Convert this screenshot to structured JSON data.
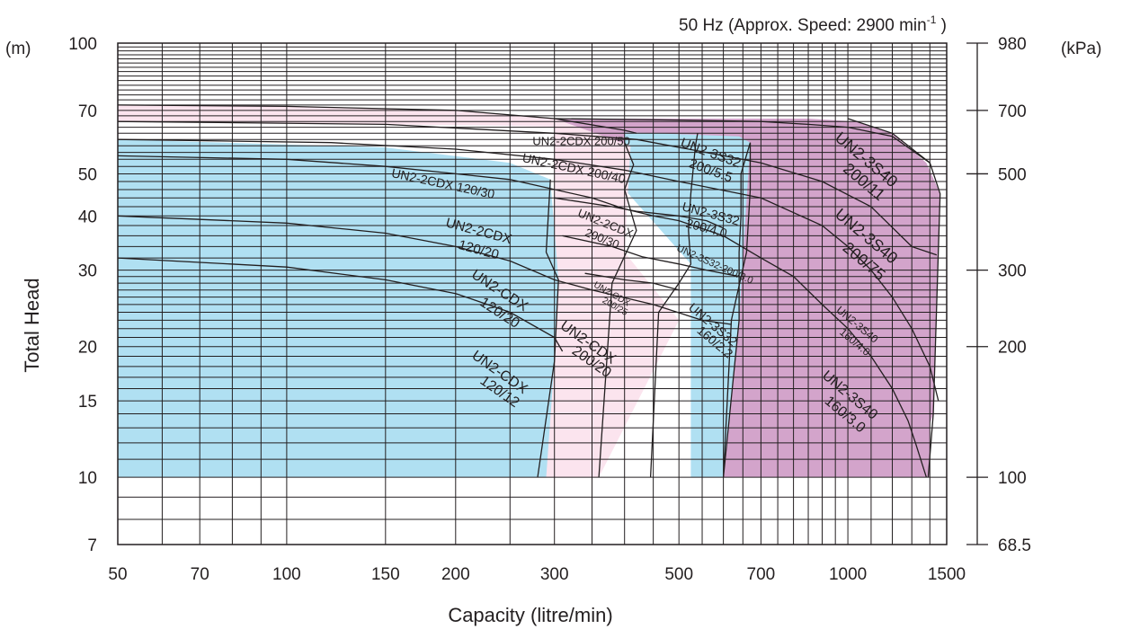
{
  "chart_data": {
    "type": "area",
    "title_main": "50 Hz (Approx. Speed: 2900 min",
    "title_sup": "-1",
    "title_end": " )",
    "xlabel": "Capacity (litre/min)",
    "ylabel": "Total Head",
    "y_unit_left": "(m)",
    "y_unit_right": "(kPa)",
    "x_scale": "log",
    "y_scale": "log",
    "xlim": [
      50,
      1500
    ],
    "ylim": [
      7,
      100
    ],
    "x_ticks": [
      {
        "v": 50,
        "label": "50"
      },
      {
        "v": 70,
        "label": "70"
      },
      {
        "v": 100,
        "label": "100"
      },
      {
        "v": 150,
        "label": "150"
      },
      {
        "v": 200,
        "label": "200"
      },
      {
        "v": 300,
        "label": "300"
      },
      {
        "v": 500,
        "label": "500"
      },
      {
        "v": 700,
        "label": "700"
      },
      {
        "v": 1000,
        "label": "1000"
      },
      {
        "v": 1500,
        "label": "1500"
      }
    ],
    "y_ticks_left": [
      {
        "v": 7,
        "label": "7"
      },
      {
        "v": 10,
        "label": "10"
      },
      {
        "v": 15,
        "label": "15"
      },
      {
        "v": 20,
        "label": "20"
      },
      {
        "v": 30,
        "label": "30"
      },
      {
        "v": 40,
        "label": "40"
      },
      {
        "v": 50,
        "label": "50"
      },
      {
        "v": 70,
        "label": "70"
      },
      {
        "v": 100,
        "label": "100"
      }
    ],
    "y_ticks_right": [
      {
        "v": 7,
        "label": "68.5"
      },
      {
        "v": 10,
        "label": "100"
      },
      {
        "v": 20,
        "label": "200"
      },
      {
        "v": 30,
        "label": "300"
      },
      {
        "v": 50,
        "label": "500"
      },
      {
        "v": 70,
        "label": "700"
      },
      {
        "v": 100,
        "label": "980"
      }
    ],
    "colors": {
      "purple": "#d3a4cb",
      "blue": "#b0e0f2",
      "pink": "#fbe4ee",
      "line": "#231f20"
    },
    "regions": [
      {
        "name": "UN2-3S40 (purple)",
        "color": "purple",
        "polygon": [
          [
            600,
            10
          ],
          [
            1400,
            10
          ],
          [
            1400,
            13.3
          ],
          [
            1420,
            14
          ],
          [
            1460,
            45
          ],
          [
            1380,
            53
          ],
          [
            1200,
            62
          ],
          [
            1040,
            66
          ],
          [
            850,
            67
          ],
          [
            300,
            67
          ],
          [
            300,
            59
          ],
          [
            600,
            40
          ]
        ]
      },
      {
        "name": "UN2-3S32 (blue)",
        "color": "blue",
        "polygon": [
          [
            525,
            10
          ],
          [
            600,
            10
          ],
          [
            640,
            23
          ],
          [
            670,
            59
          ],
          [
            640,
            61
          ],
          [
            450,
            62
          ],
          [
            400,
            62.3
          ],
          [
            400,
            46
          ],
          [
            525,
            31
          ]
        ]
      },
      {
        "name": "UN2-2CDX (pink)",
        "color": "pink",
        "polygon": [
          [
            280,
            10
          ],
          [
            360,
            10
          ],
          [
            500,
            23
          ],
          [
            400,
            33
          ],
          [
            410,
            58
          ],
          [
            300,
            67
          ],
          [
            200,
            70
          ],
          [
            100,
            71.5
          ],
          [
            50,
            72
          ],
          [
            50,
            66
          ],
          [
            150,
            65
          ],
          [
            250,
            64.5
          ],
          [
            300,
            64.2
          ],
          [
            300,
            44
          ]
        ]
      },
      {
        "name": "UN2-CDX / 2CDX 120 (blue)",
        "color": "blue",
        "polygon": [
          [
            50,
            10
          ],
          [
            290,
            10
          ],
          [
            300,
            18.5
          ],
          [
            305,
            28.5
          ],
          [
            295,
            48.5
          ],
          [
            250,
            53
          ],
          [
            150,
            57.5
          ],
          [
            50,
            60
          ]
        ]
      }
    ],
    "boundaries": [
      [
        [
          280,
          10
        ],
        [
          300,
          18.5
        ],
        [
          305,
          28.5
        ],
        [
          290,
          33
        ],
        [
          295,
          48.5
        ]
      ],
      [
        [
          360,
          10
        ],
        [
          380,
          28
        ],
        [
          420,
          37
        ],
        [
          400,
          46
        ],
        [
          415,
          52.5
        ],
        [
          400,
          59
        ]
      ],
      [
        [
          445,
          10
        ],
        [
          460,
          24
        ],
        [
          500,
          28
        ],
        [
          525,
          31
        ],
        [
          520,
          37
        ],
        [
          525,
          45
        ],
        [
          535,
          58
        ],
        [
          540,
          62
        ]
      ],
      [
        [
          600,
          10
        ],
        [
          640,
          23
        ],
        [
          640,
          33
        ],
        [
          645,
          40
        ],
        [
          645,
          50
        ],
        [
          670,
          59
        ]
      ],
      [
        [
          600,
          10
        ],
        [
          620,
          23
        ],
        [
          660,
          33
        ],
        [
          670,
          46
        ],
        [
          670,
          59
        ]
      ],
      [
        [
          1390,
          10
        ],
        [
          1420,
          14
        ],
        [
          1460,
          45
        ],
        [
          1400,
          53
        ],
        [
          1200,
          62
        ],
        [
          1000,
          67
        ]
      ]
    ],
    "curves": [
      [
        [
          50,
          72
        ],
        [
          100,
          71.5
        ],
        [
          200,
          70
        ],
        [
          300,
          67
        ],
        [
          400,
          63
        ],
        [
          420,
          62
        ]
      ],
      [
        [
          300,
          67
        ],
        [
          500,
          66.5
        ],
        [
          700,
          66
        ],
        [
          850,
          65
        ],
        [
          1000,
          64
        ],
        [
          1200,
          61
        ],
        [
          1400,
          53
        ]
      ],
      [
        [
          50,
          66
        ],
        [
          150,
          65
        ],
        [
          300,
          62
        ],
        [
          420,
          60
        ],
        [
          560,
          56
        ],
        [
          700,
          53
        ],
        [
          900,
          48
        ],
        [
          1100,
          42
        ],
        [
          1300,
          34
        ],
        [
          1440,
          32.5
        ]
      ],
      [
        [
          50,
          60
        ],
        [
          120,
          59
        ],
        [
          200,
          57
        ],
        [
          300,
          54
        ],
        [
          400,
          51
        ],
        [
          500,
          48
        ],
        [
          700,
          44
        ],
        [
          900,
          38
        ],
        [
          1000,
          34
        ],
        [
          1100,
          30
        ],
        [
          1200,
          26
        ],
        [
          1300,
          22
        ],
        [
          1400,
          18
        ],
        [
          1450,
          15
        ]
      ],
      [
        [
          50,
          55
        ],
        [
          100,
          54
        ],
        [
          150,
          52
        ],
        [
          200,
          50
        ],
        [
          250,
          48.5
        ],
        [
          300,
          46
        ],
        [
          350,
          44
        ],
        [
          400,
          41.5
        ],
        [
          450,
          40
        ],
        [
          500,
          39
        ],
        [
          600,
          36
        ],
        [
          700,
          32
        ],
        [
          800,
          29
        ],
        [
          900,
          25
        ],
        [
          1000,
          22
        ],
        [
          1100,
          19
        ],
        [
          1200,
          16
        ],
        [
          1280,
          13.5
        ],
        [
          1320,
          12
        ],
        [
          1380,
          10
        ]
      ],
      [
        [
          50,
          40
        ],
        [
          100,
          38.5
        ],
        [
          150,
          36.5
        ],
        [
          200,
          34
        ],
        [
          250,
          31.5
        ],
        [
          300,
          28.5
        ],
        [
          350,
          27
        ],
        [
          450,
          25
        ],
        [
          550,
          23
        ],
        [
          620,
          22.5
        ]
      ],
      [
        [
          50,
          32
        ],
        [
          100,
          30.5
        ],
        [
          150,
          28.5
        ],
        [
          200,
          26.5
        ],
        [
          250,
          24
        ],
        [
          300,
          21
        ],
        [
          310,
          19.5
        ]
      ],
      [
        [
          310,
          36
        ],
        [
          380,
          34
        ],
        [
          430,
          32.2
        ],
        [
          500,
          31
        ],
        [
          560,
          30
        ],
        [
          640,
          29
        ]
      ],
      [
        [
          340,
          29.5
        ],
        [
          400,
          28.5
        ],
        [
          450,
          28
        ],
        [
          500,
          27
        ]
      ],
      [
        [
          300,
          44
        ],
        [
          380,
          42
        ],
        [
          420,
          41
        ],
        [
          500,
          40
        ],
        [
          560,
          39
        ],
        [
          600,
          37.5
        ]
      ]
    ],
    "labels": [
      {
        "text": "UN2-2CDX 200/50",
        "x": 335,
        "y": 59.5,
        "rot": 0,
        "size": 13
      },
      {
        "text": "UN2-2CDX 200/40",
        "x": 325,
        "y": 51.5,
        "rot": 12,
        "size": 14
      },
      {
        "text": "UN2-2CDX 120/30",
        "x": 190,
        "y": 47.5,
        "rot": 12,
        "size": 14
      },
      {
        "text": "UN2-2CDX",
        "x": 220,
        "y": 37,
        "rot": 15,
        "size": 15
      },
      {
        "text": "120/20",
        "x": 220,
        "y": 33.5,
        "rot": 15,
        "size": 15
      },
      {
        "text": "UN2-2CDX",
        "x": 370,
        "y": 38.5,
        "rot": 22,
        "size": 13
      },
      {
        "text": "200/30",
        "x": 365,
        "y": 35.5,
        "rot": 22,
        "size": 13
      },
      {
        "text": "UN2-3S32",
        "x": 570,
        "y": 56,
        "rot": 20,
        "size": 15
      },
      {
        "text": "200/5.5",
        "x": 570,
        "y": 51,
        "rot": 20,
        "size": 15
      },
      {
        "text": "UN2-3S32",
        "x": 570,
        "y": 40.5,
        "rot": 15,
        "size": 14
      },
      {
        "text": "200/4.0",
        "x": 560,
        "y": 37.5,
        "rot": 15,
        "size": 14
      },
      {
        "text": "UN2-3S32-200/3.0",
        "x": 580,
        "y": 31,
        "rot": 24,
        "size": 11
      },
      {
        "text": "UN2-CDX",
        "x": 240,
        "y": 27,
        "rot": 33,
        "size": 16
      },
      {
        "text": "120/20",
        "x": 240,
        "y": 24,
        "rot": 33,
        "size": 16
      },
      {
        "text": "UN2-CDX",
        "x": 380,
        "y": 26.5,
        "rot": 30,
        "size": 10
      },
      {
        "text": "200/25",
        "x": 385,
        "y": 24.8,
        "rot": 30,
        "size": 10
      },
      {
        "text": "UN2-3S32",
        "x": 575,
        "y": 22.5,
        "rot": 40,
        "size": 14
      },
      {
        "text": "160/2.2",
        "x": 580,
        "y": 20.5,
        "rot": 40,
        "size": 14
      },
      {
        "text": "UN2-CDX",
        "x": 345,
        "y": 20.5,
        "rot": 35,
        "size": 16
      },
      {
        "text": "200/20",
        "x": 350,
        "y": 18.5,
        "rot": 35,
        "size": 16
      },
      {
        "text": "UN2-CDX",
        "x": 240,
        "y": 17.5,
        "rot": 35,
        "size": 16
      },
      {
        "text": "120/12",
        "x": 240,
        "y": 15.8,
        "rot": 35,
        "size": 16
      },
      {
        "text": "UN2-3S40",
        "x": 1080,
        "y": 54,
        "rot": 40,
        "size": 18
      },
      {
        "text": "200/11",
        "x": 1070,
        "y": 48,
        "rot": 40,
        "size": 18
      },
      {
        "text": "UN2-3S40",
        "x": 1080,
        "y": 36,
        "rot": 40,
        "size": 18
      },
      {
        "text": "200/75",
        "x": 1070,
        "y": 31.5,
        "rot": 40,
        "size": 18
      },
      {
        "text": "UN2-3S40",
        "x": 1040,
        "y": 22.5,
        "rot": 40,
        "size": 12
      },
      {
        "text": "160/4.0",
        "x": 1030,
        "y": 20.5,
        "rot": 40,
        "size": 12
      },
      {
        "text": "UN2-3S40",
        "x": 1010,
        "y": 15.5,
        "rot": 40,
        "size": 16
      },
      {
        "text": "160/3.0",
        "x": 990,
        "y": 14,
        "rot": 40,
        "size": 16
      }
    ]
  }
}
